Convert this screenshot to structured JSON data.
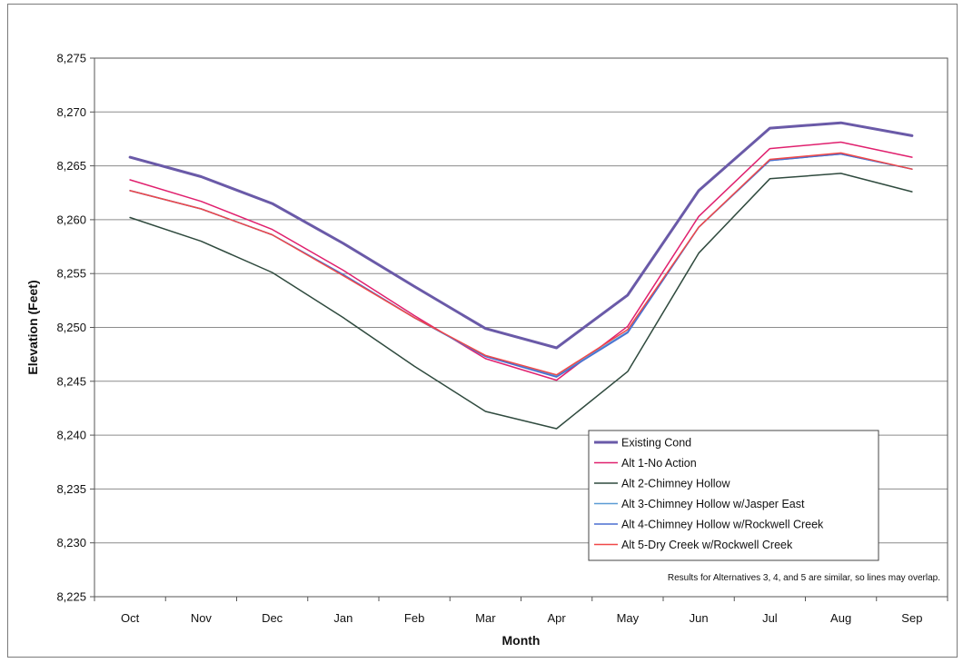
{
  "chart_data": {
    "type": "line",
    "xlabel": "Month",
    "ylabel": "Elevation (Feet)",
    "categories": [
      "Oct",
      "Nov",
      "Dec",
      "Jan",
      "Feb",
      "Mar",
      "Apr",
      "May",
      "Jun",
      "Jul",
      "Aug",
      "Sep"
    ],
    "ylim": [
      8225,
      8275
    ],
    "yticks": [
      8225,
      8230,
      8235,
      8240,
      8245,
      8250,
      8255,
      8260,
      8265,
      8270,
      8275
    ],
    "ytick_labels": [
      "8,225",
      "8,230",
      "8,235",
      "8,240",
      "8,245",
      "8,250",
      "8,255",
      "8,260",
      "8,265",
      "8,270",
      "8,275"
    ],
    "grid": "horizontal",
    "legend_position": "bottom-right",
    "series": [
      {
        "name": "Existing Cond",
        "color": "#6a5aa8",
        "width": 3,
        "values": [
          8265.8,
          8264.0,
          8261.5,
          8257.8,
          8253.8,
          8249.9,
          8248.1,
          8253.0,
          8262.7,
          8268.5,
          8269.0,
          8267.8
        ]
      },
      {
        "name": "Alt 1-No Action",
        "color": "#e0206e",
        "width": 1.5,
        "values": [
          8263.7,
          8261.7,
          8259.1,
          8255.3,
          8251.1,
          8247.1,
          8245.1,
          8250.1,
          8260.3,
          8266.6,
          8267.2,
          8265.8
        ]
      },
      {
        "name": "Alt 2-Chimney Hollow",
        "color": "#2f4a3e",
        "width": 1.5,
        "values": [
          8260.2,
          8258.0,
          8255.1,
          8250.9,
          8246.4,
          8242.2,
          8240.6,
          8245.9,
          8256.9,
          8263.8,
          8264.3,
          8262.6
        ]
      },
      {
        "name": "Alt 3-Chimney Hollow w/Jasper East",
        "color": "#5b9bd5",
        "width": 1.5,
        "values": [
          8262.7,
          8261.0,
          8258.6,
          8254.9,
          8250.9,
          8247.3,
          8245.5,
          8249.6,
          8259.3,
          8265.5,
          8266.1,
          8264.7
        ]
      },
      {
        "name": "Alt 4-Chimney Hollow w/Rockwell Creek",
        "color": "#4a6fd0",
        "width": 1.5,
        "values": [
          8262.7,
          8261.0,
          8258.6,
          8254.9,
          8250.9,
          8247.3,
          8245.4,
          8249.5,
          8259.3,
          8265.5,
          8266.1,
          8264.7
        ]
      },
      {
        "name": "Alt 5-Dry Creek w/Rockwell Creek",
        "color": "#f04848",
        "width": 1.5,
        "values": [
          8262.7,
          8261.0,
          8258.6,
          8254.8,
          8250.9,
          8247.4,
          8245.6,
          8249.8,
          8259.3,
          8265.6,
          8266.2,
          8264.7
        ]
      }
    ],
    "annotations": [
      "Results for Alternatives 3, 4, and 5 are similar, so lines may overlap."
    ]
  }
}
